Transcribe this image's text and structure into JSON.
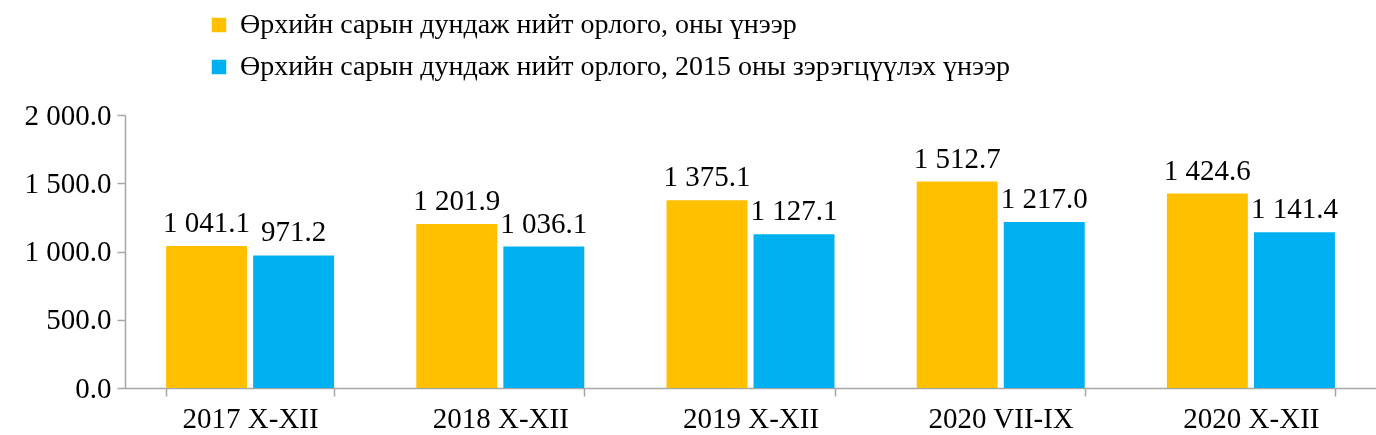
{
  "chart_data": {
    "type": "bar",
    "categories": [
      "2017 X-XII",
      "2018 X-XII",
      "2019 X-XII",
      "2020 VII-IX",
      "2020 X-XII"
    ],
    "series": [
      {
        "name": "Өрхийн сарын дундаж нийт орлого, оны үнээр",
        "color": "#ffc000",
        "values": [
          1041.1,
          1201.9,
          1375.1,
          1512.7,
          1424.6
        ],
        "value_labels": [
          "1 041.1",
          "1 201.9",
          "1 375.1",
          "1 512.7",
          "1 424.6"
        ]
      },
      {
        "name": "Өрхийн сарын дундаж нийт орлого, 2015 оны зэрэгцүүлэх үнээр",
        "color": "#00b0f0",
        "values": [
          971.2,
          1036.1,
          1127.1,
          1217.0,
          1141.4
        ],
        "value_labels": [
          "971.2",
          "1 036.1",
          "1 127.1",
          "1 217.0",
          "1 141.4"
        ]
      }
    ],
    "ylim": [
      0,
      2000
    ],
    "yticks": [
      {
        "value": 0,
        "label": "0.0"
      },
      {
        "value": 500,
        "label": "500.0"
      },
      {
        "value": 1000,
        "label": "1 000.0"
      },
      {
        "value": 1500,
        "label": "1 500.0"
      },
      {
        "value": 2000,
        "label": "2 000.0"
      }
    ],
    "grid": false,
    "legend": "top"
  }
}
